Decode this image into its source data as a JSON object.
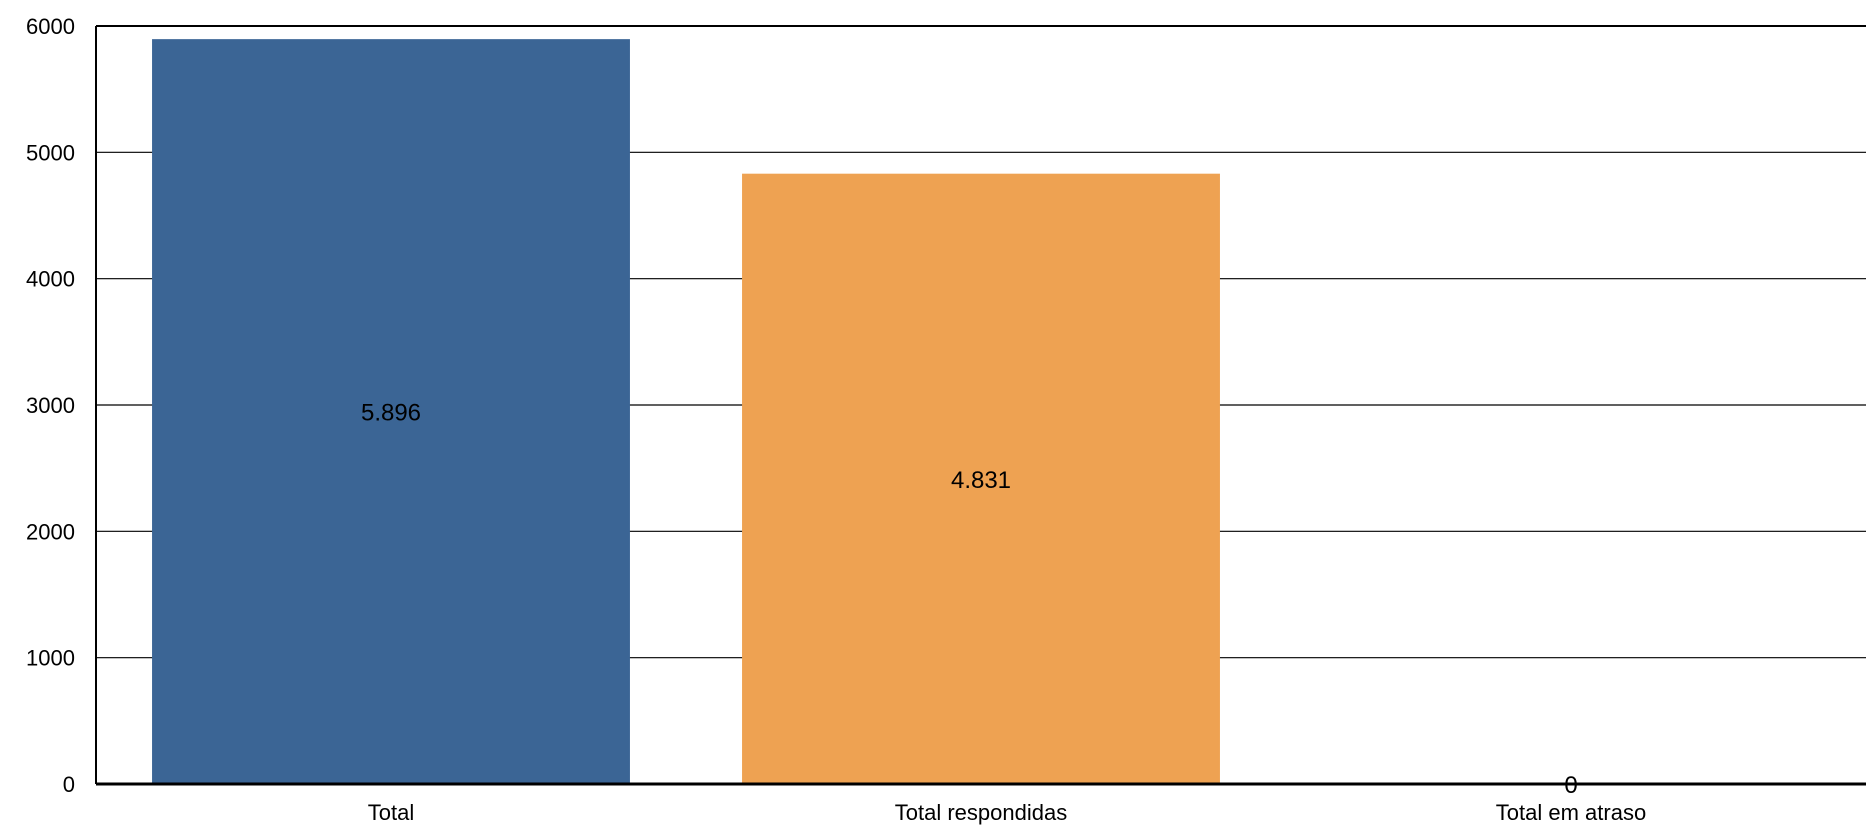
{
  "chart_data": {
    "type": "bar",
    "categories": [
      "Total",
      "Total respondidas",
      "Total em atraso"
    ],
    "values": [
      5896,
      4831,
      0
    ],
    "data_labels": [
      "5.896",
      "4.831",
      "0"
    ],
    "colors": [
      "#3b6595",
      "#eea252",
      "#eea252"
    ],
    "ylim": [
      0,
      6000
    ],
    "yticks": [
      0,
      1000,
      2000,
      3000,
      4000,
      5000,
      6000
    ],
    "ytick_labels": [
      "0",
      "1000",
      "2000",
      "3000",
      "4000",
      "5000",
      "6000"
    ],
    "grid": true,
    "legend": "none",
    "title": "",
    "xlabel": "",
    "ylabel": ""
  }
}
